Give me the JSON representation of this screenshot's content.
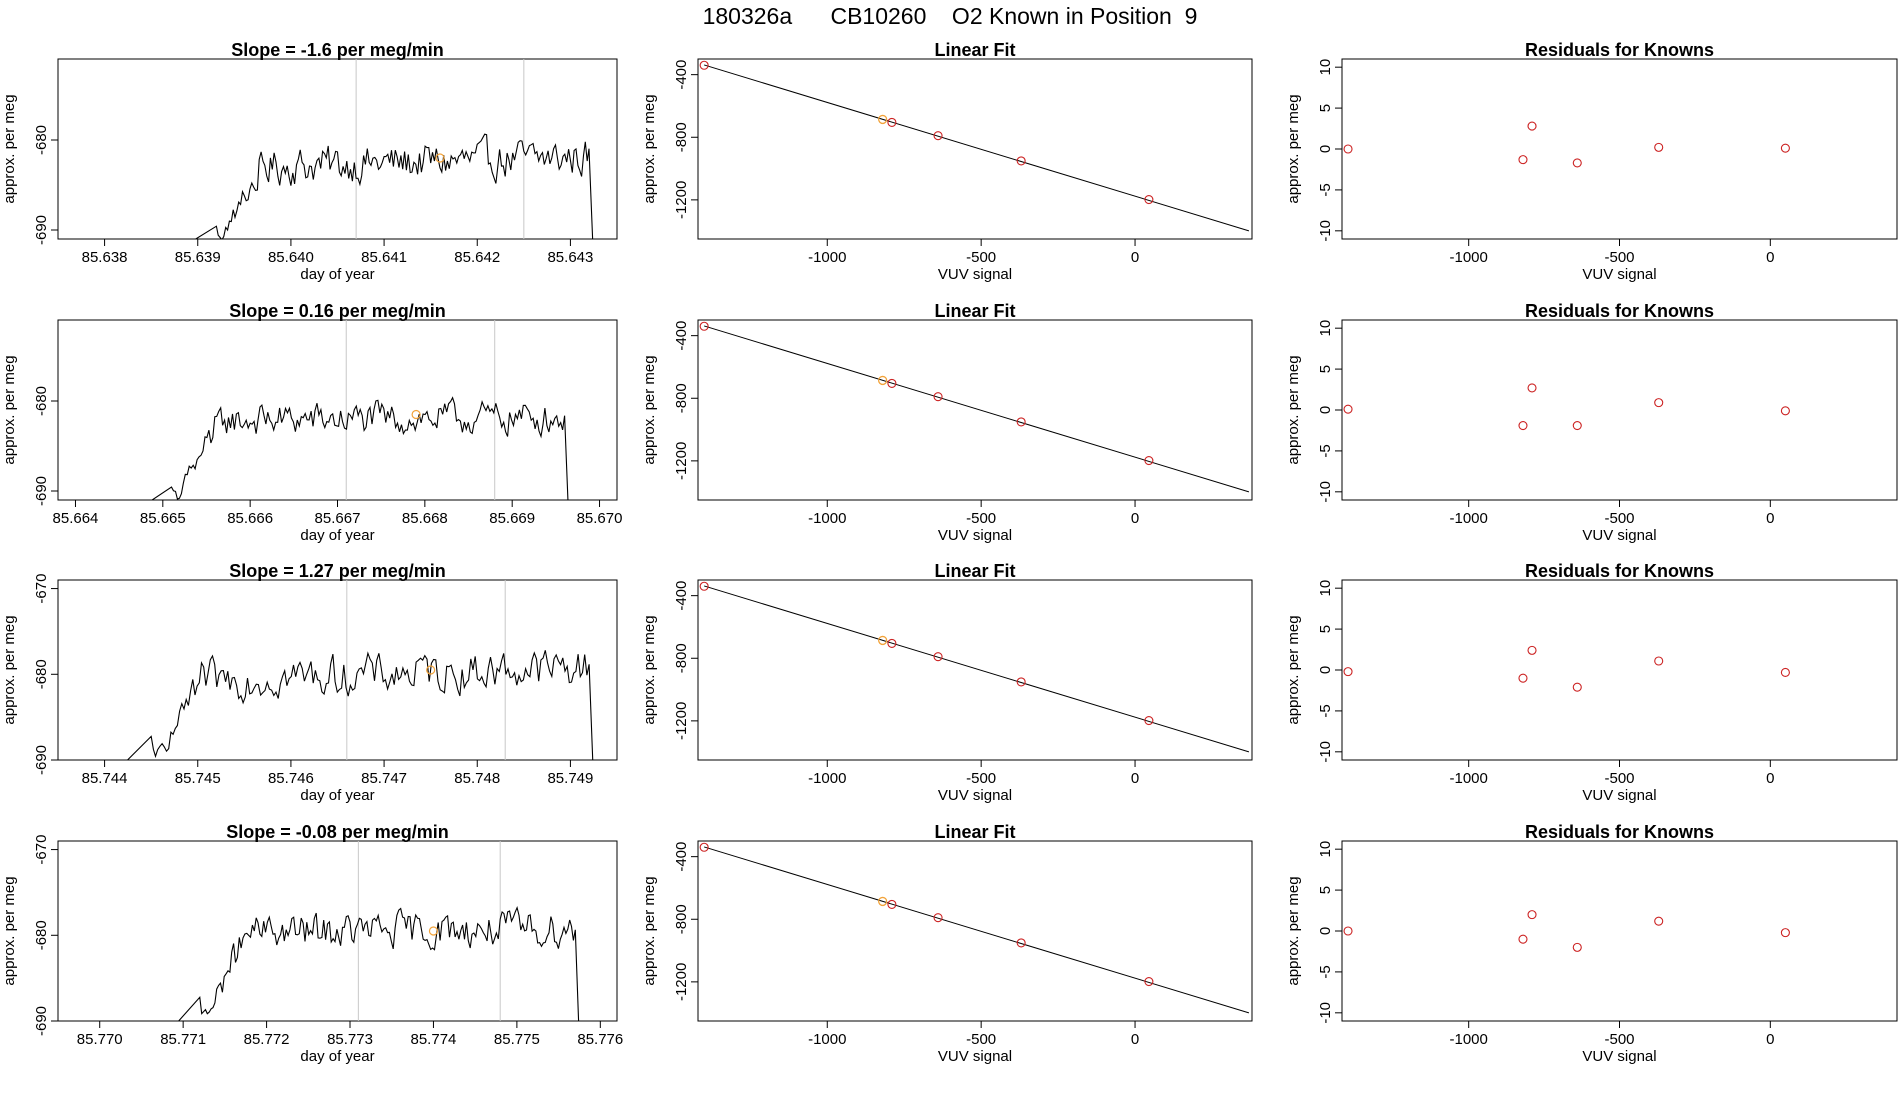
{
  "page_title": "180326a      CB10260    O2 Known in Position  9",
  "colors": {
    "trace": "#000000",
    "known_point": "#cc2222",
    "sample_point": "#f2a33a",
    "marker_line": "#c8c8c8",
    "axis": "#000000"
  },
  "chart_data": [
    {
      "type": "line",
      "row": 0,
      "panel": "time_series",
      "title": "Slope =  -1.6  per meg/min",
      "xlabel": "day of year",
      "ylabel": "approx. per meg",
      "xlim": [
        85.6375,
        85.6435
      ],
      "ylim": [
        -691,
        -671
      ],
      "xticks": [
        "85.638",
        "85.639",
        "85.640",
        "85.641",
        "85.642",
        "85.643"
      ],
      "yticks": [
        "-690",
        "-680"
      ],
      "trace_start": 85.6392,
      "trace_end": 85.6432,
      "trace_drop_at_end": true,
      "trace_level": -682.5,
      "trace_amplitude": 3.2,
      "trace_trend": 0.6,
      "marker_lines": [
        85.6407,
        85.6425
      ],
      "highlight_point": [
        85.6416,
        -682
      ]
    },
    {
      "type": "line",
      "row": 1,
      "panel": "time_series",
      "title": "Slope =  0.16  per meg/min",
      "xlabel": "day of year",
      "ylabel": "approx. per meg",
      "xlim": [
        85.6638,
        85.6702
      ],
      "ylim": [
        -691,
        -671
      ],
      "xticks": [
        "85.664",
        "85.665",
        "85.666",
        "85.667",
        "85.668",
        "85.669",
        "85.670"
      ],
      "yticks": [
        "-690",
        "-680"
      ],
      "trace_start": 85.6651,
      "trace_end": 85.6696,
      "trace_drop_at_end": true,
      "trace_level": -682,
      "trace_amplitude": 2.8,
      "trace_trend": 0.2,
      "marker_lines": [
        85.6671,
        85.6688
      ],
      "highlight_point": [
        85.6679,
        -681.5
      ]
    },
    {
      "type": "line",
      "row": 2,
      "panel": "time_series",
      "title": "Slope =  1.27  per meg/min",
      "xlabel": "day of year",
      "ylabel": "approx. per meg",
      "xlim": [
        85.7435,
        85.7495
      ],
      "ylim": [
        -690,
        -669
      ],
      "xticks": [
        "85.744",
        "85.745",
        "85.746",
        "85.747",
        "85.748",
        "85.749"
      ],
      "yticks": [
        "-690",
        "-680",
        "-670"
      ],
      "trace_start": 85.7445,
      "trace_end": 85.7492,
      "trace_drop_at_end": true,
      "trace_level": -680,
      "trace_amplitude": 3.6,
      "trace_trend": 0.8,
      "marker_lines": [
        85.7466,
        85.7483
      ],
      "highlight_point": [
        85.7475,
        -679.5
      ]
    },
    {
      "type": "line",
      "row": 3,
      "panel": "time_series",
      "title": "Slope =  -0.08  per meg/min",
      "xlabel": "day of year",
      "ylabel": "approx. per meg",
      "xlim": [
        85.7695,
        85.7762
      ],
      "ylim": [
        -690,
        -669
      ],
      "xticks": [
        "85.770",
        "85.771",
        "85.772",
        "85.773",
        "85.774",
        "85.775",
        "85.776"
      ],
      "yticks": [
        "-690",
        "-680",
        "-670"
      ],
      "trace_start": 85.7712,
      "trace_end": 85.7757,
      "trace_drop_at_end": true,
      "trace_level": -679.5,
      "trace_amplitude": 3.2,
      "trace_trend": 0.3,
      "marker_lines": [
        85.7731,
        85.7748
      ],
      "highlight_point": [
        85.774,
        -679.5
      ]
    },
    {
      "type": "scatter",
      "row": 0,
      "panel": "linear_fit",
      "title": "Linear Fit",
      "xlabel": "VUV signal",
      "ylabel": "approx. per meg",
      "xlim": [
        -1420,
        380
      ],
      "ylim": [
        -1450,
        -300
      ],
      "xticks": [
        -1000,
        -500,
        0
      ],
      "yticks": [
        -400,
        -800,
        -1200
      ],
      "fit_line": {
        "x": [
          -1400,
          370
        ],
        "y": [
          -338,
          -1398
        ]
      },
      "known_points": [
        [
          -1400,
          -340
        ],
        [
          -790,
          -705
        ],
        [
          -640,
          -790
        ],
        [
          -370,
          -951
        ],
        [
          45,
          -1198
        ]
      ],
      "sample_point": [
        -820,
        -686
      ]
    },
    {
      "type": "scatter",
      "row": 1,
      "panel": "linear_fit",
      "title": "Linear Fit",
      "xlabel": "VUV signal",
      "ylabel": "approx. per meg",
      "xlim": [
        -1420,
        380
      ],
      "ylim": [
        -1450,
        -300
      ],
      "xticks": [
        -1000,
        -500,
        0
      ],
      "yticks": [
        -400,
        -800,
        -1200
      ],
      "fit_line": {
        "x": [
          -1400,
          370
        ],
        "y": [
          -338,
          -1398
        ]
      },
      "known_points": [
        [
          -1400,
          -340
        ],
        [
          -790,
          -705
        ],
        [
          -640,
          -790
        ],
        [
          -370,
          -951
        ],
        [
          45,
          -1198
        ]
      ],
      "sample_point": [
        -820,
        -686
      ]
    },
    {
      "type": "scatter",
      "row": 2,
      "panel": "linear_fit",
      "title": "Linear Fit",
      "xlabel": "VUV signal",
      "ylabel": "approx. per meg",
      "xlim": [
        -1420,
        380
      ],
      "ylim": [
        -1450,
        -300
      ],
      "xticks": [
        -1000,
        -500,
        0
      ],
      "yticks": [
        -400,
        -800,
        -1200
      ],
      "fit_line": {
        "x": [
          -1400,
          370
        ],
        "y": [
          -338,
          -1398
        ]
      },
      "known_points": [
        [
          -1400,
          -340
        ],
        [
          -790,
          -705
        ],
        [
          -640,
          -790
        ],
        [
          -370,
          -951
        ],
        [
          45,
          -1198
        ]
      ],
      "sample_point": [
        -820,
        -686
      ]
    },
    {
      "type": "scatter",
      "row": 3,
      "panel": "linear_fit",
      "title": "Linear Fit",
      "xlabel": "VUV signal",
      "ylabel": "approx. per meg",
      "xlim": [
        -1420,
        380
      ],
      "ylim": [
        -1450,
        -300
      ],
      "xticks": [
        -1000,
        -500,
        0
      ],
      "yticks": [
        -400,
        -800,
        -1200
      ],
      "fit_line": {
        "x": [
          -1400,
          370
        ],
        "y": [
          -338,
          -1398
        ]
      },
      "known_points": [
        [
          -1400,
          -340
        ],
        [
          -790,
          -705
        ],
        [
          -640,
          -790
        ],
        [
          -370,
          -951
        ],
        [
          45,
          -1198
        ]
      ],
      "sample_point": [
        -820,
        -686
      ]
    },
    {
      "type": "scatter",
      "row": 0,
      "panel": "residuals",
      "title": "Residuals for Knowns",
      "xlabel": "VUV signal",
      "ylabel": "approx. per meg",
      "xlim": [
        -1420,
        420
      ],
      "ylim": [
        -11,
        11
      ],
      "xticks": [
        -1000,
        -500,
        0
      ],
      "yticks": [
        10,
        5,
        0,
        -5,
        -10
      ],
      "points": [
        [
          -1400,
          0
        ],
        [
          -820,
          -1.3
        ],
        [
          -790,
          2.8
        ],
        [
          -640,
          -1.7
        ],
        [
          -370,
          0.2
        ],
        [
          50,
          0.1
        ]
      ]
    },
    {
      "type": "scatter",
      "row": 1,
      "panel": "residuals",
      "title": "Residuals for Knowns",
      "xlabel": "VUV signal",
      "ylabel": "approx. per meg",
      "xlim": [
        -1420,
        420
      ],
      "ylim": [
        -11,
        11
      ],
      "xticks": [
        -1000,
        -500,
        0
      ],
      "yticks": [
        10,
        5,
        0,
        -5,
        -10
      ],
      "points": [
        [
          -1400,
          0.1
        ],
        [
          -820,
          -1.9
        ],
        [
          -790,
          2.7
        ],
        [
          -640,
          -1.9
        ],
        [
          -370,
          0.9
        ],
        [
          50,
          -0.1
        ]
      ]
    },
    {
      "type": "scatter",
      "row": 2,
      "panel": "residuals",
      "title": "Residuals for Knowns",
      "xlabel": "VUV signal",
      "ylabel": "approx. per meg",
      "xlim": [
        -1420,
        420
      ],
      "ylim": [
        -11,
        11
      ],
      "xticks": [
        -1000,
        -500,
        0
      ],
      "yticks": [
        10,
        5,
        0,
        -5,
        -10
      ],
      "points": [
        [
          -1400,
          -0.2
        ],
        [
          -820,
          -1.0
        ],
        [
          -790,
          2.4
        ],
        [
          -640,
          -2.1
        ],
        [
          -370,
          1.1
        ],
        [
          50,
          -0.3
        ]
      ]
    },
    {
      "type": "scatter",
      "row": 3,
      "panel": "residuals",
      "title": "Residuals for Knowns",
      "xlabel": "VUV signal",
      "ylabel": "approx. per meg",
      "xlim": [
        -1420,
        420
      ],
      "ylim": [
        -11,
        11
      ],
      "xticks": [
        -1000,
        -500,
        0
      ],
      "yticks": [
        10,
        5,
        0,
        -5,
        -10
      ],
      "points": [
        [
          -1400,
          0
        ],
        [
          -820,
          -1.0
        ],
        [
          -790,
          2.0
        ],
        [
          -640,
          -2.0
        ],
        [
          -370,
          1.2
        ],
        [
          50,
          -0.2
        ]
      ]
    }
  ]
}
